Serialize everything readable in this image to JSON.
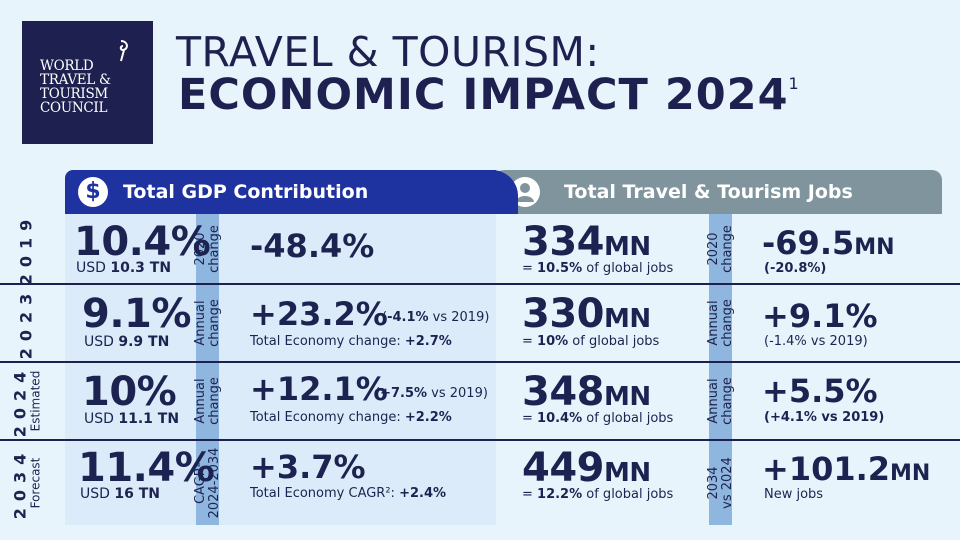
{
  "logo": {
    "lines": [
      "WORLD",
      "TRAVEL &",
      "TOURISM",
      "COUNCIL"
    ]
  },
  "title": {
    "line1": "TRAVEL & TOURISM:",
    "line2": "ECONOMIC IMPACT 2024",
    "footnote": "1"
  },
  "headers": {
    "gdp": {
      "icon": "$",
      "label": "Total GDP Contribution"
    },
    "jobs": {
      "label": "Total Travel & Tourism Jobs"
    }
  },
  "rows": [
    {
      "year": "2019",
      "year_sub": "",
      "gdp_share": "10.4%",
      "gdp_usd_prefix": "USD",
      "gdp_usd": "10.3 TN",
      "gdp_change_label": [
        "2020",
        "change"
      ],
      "gdp_change": "-48.4%",
      "gdp_change_note_prefix": "",
      "gdp_change_note": "",
      "gdp_change_note_suffix": "",
      "gdp_total_prefix": "",
      "gdp_total": "",
      "jobs_value": "334",
      "jobs_unit": "MN",
      "jobs_share_prefix": "= ",
      "jobs_share": "10.5%",
      "jobs_share_suffix": " of global jobs",
      "jobs_change_label": [
        "2020",
        "change"
      ],
      "jobs_change": "-69.5",
      "jobs_change_unit": "MN",
      "jobs_note": "(-20.8%)"
    },
    {
      "year": "2023",
      "year_sub": "",
      "gdp_share": "9.1%",
      "gdp_usd_prefix": "USD",
      "gdp_usd": "9.9 TN",
      "gdp_change_label": [
        "Annual",
        "change"
      ],
      "gdp_change": "+23.2%",
      "gdp_change_note_prefix": "(",
      "gdp_change_note": "-4.1%",
      "gdp_change_note_suffix": " vs 2019)",
      "gdp_total_prefix": "Total Economy change: ",
      "gdp_total": "+2.7%",
      "jobs_value": "330",
      "jobs_unit": "MN",
      "jobs_share_prefix": "= ",
      "jobs_share": "10%",
      "jobs_share_suffix": " of global jobs",
      "jobs_change_label": [
        "Annual",
        "change"
      ],
      "jobs_change": "+9.1%",
      "jobs_change_unit": "",
      "jobs_note": "(-1.4% vs 2019)"
    },
    {
      "year": "2024",
      "year_sub": "Estimated",
      "gdp_share": "10%",
      "gdp_usd_prefix": "USD",
      "gdp_usd": "11.1 TN",
      "gdp_change_label": [
        "Annual",
        "change"
      ],
      "gdp_change": "+12.1%",
      "gdp_change_note_prefix": "(",
      "gdp_change_note": "+7.5%",
      "gdp_change_note_suffix": " vs 2019)",
      "gdp_total_prefix": "Total Economy change: ",
      "gdp_total": "+2.2%",
      "jobs_value": "348",
      "jobs_unit": "MN",
      "jobs_share_prefix": "= ",
      "jobs_share": "10.4%",
      "jobs_share_suffix": " of global jobs",
      "jobs_change_label": [
        "Annual",
        "change"
      ],
      "jobs_change": "+5.5%",
      "jobs_change_unit": "",
      "jobs_note": "(+4.1% vs 2019)"
    },
    {
      "year": "2034",
      "year_sub": "Forecast",
      "gdp_share": "11.4%",
      "gdp_usd_prefix": "USD",
      "gdp_usd": "16 TN",
      "gdp_change_label": [
        "CAGR²",
        "2024-2034"
      ],
      "gdp_change": "+3.7%",
      "gdp_change_note_prefix": "",
      "gdp_change_note": "",
      "gdp_change_note_suffix": "",
      "gdp_total_prefix": "Total Economy CAGR²: ",
      "gdp_total": "+2.4%",
      "jobs_value": "449",
      "jobs_unit": "MN",
      "jobs_share_prefix": "= ",
      "jobs_share": "12.2%",
      "jobs_share_suffix": " of global jobs",
      "jobs_change_label": [
        "2034",
        "vs 2024"
      ],
      "jobs_change": "+101.2",
      "jobs_change_unit": "MN",
      "jobs_note": "New jobs"
    }
  ]
}
